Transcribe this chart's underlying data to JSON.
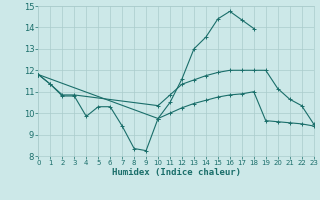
{
  "bg_color": "#cce8e8",
  "grid_color": "#aacccc",
  "line_color": "#1a6e6a",
  "xlabel": "Humidex (Indice chaleur)",
  "xlim": [
    0,
    23
  ],
  "ylim": [
    8,
    15
  ],
  "yticks": [
    8,
    9,
    10,
    11,
    12,
    13,
    14,
    15
  ],
  "xticks": [
    0,
    1,
    2,
    3,
    4,
    5,
    6,
    7,
    8,
    9,
    10,
    11,
    12,
    13,
    14,
    15,
    16,
    17,
    18,
    19,
    20,
    21,
    22,
    23
  ],
  "line1_x": [
    0,
    1,
    2,
    3,
    4,
    5,
    6,
    7,
    8,
    9,
    10,
    11,
    12,
    13,
    14,
    15,
    16,
    17,
    18
  ],
  "line1_y": [
    11.8,
    11.35,
    10.8,
    10.8,
    9.85,
    10.3,
    10.3,
    9.4,
    8.35,
    8.25,
    9.75,
    10.5,
    11.6,
    13.0,
    13.55,
    14.4,
    14.75,
    14.35,
    13.95
  ],
  "line2_x": [
    0,
    1,
    2,
    3,
    10,
    11,
    12,
    13,
    14,
    15,
    16,
    17,
    18,
    19,
    20,
    21,
    22,
    23
  ],
  "line2_y": [
    11.8,
    11.35,
    10.85,
    10.85,
    10.35,
    10.85,
    11.35,
    11.55,
    11.75,
    11.9,
    12.0,
    12.0,
    12.0,
    12.0,
    11.15,
    10.65,
    10.35,
    9.5
  ],
  "line3_x": [
    0,
    10,
    11,
    12,
    13,
    14,
    15,
    16,
    17,
    18,
    19,
    20,
    21,
    22,
    23
  ],
  "line3_y": [
    11.8,
    9.75,
    10.0,
    10.25,
    10.45,
    10.6,
    10.75,
    10.85,
    10.9,
    11.0,
    9.65,
    9.6,
    9.55,
    9.5,
    9.4
  ]
}
